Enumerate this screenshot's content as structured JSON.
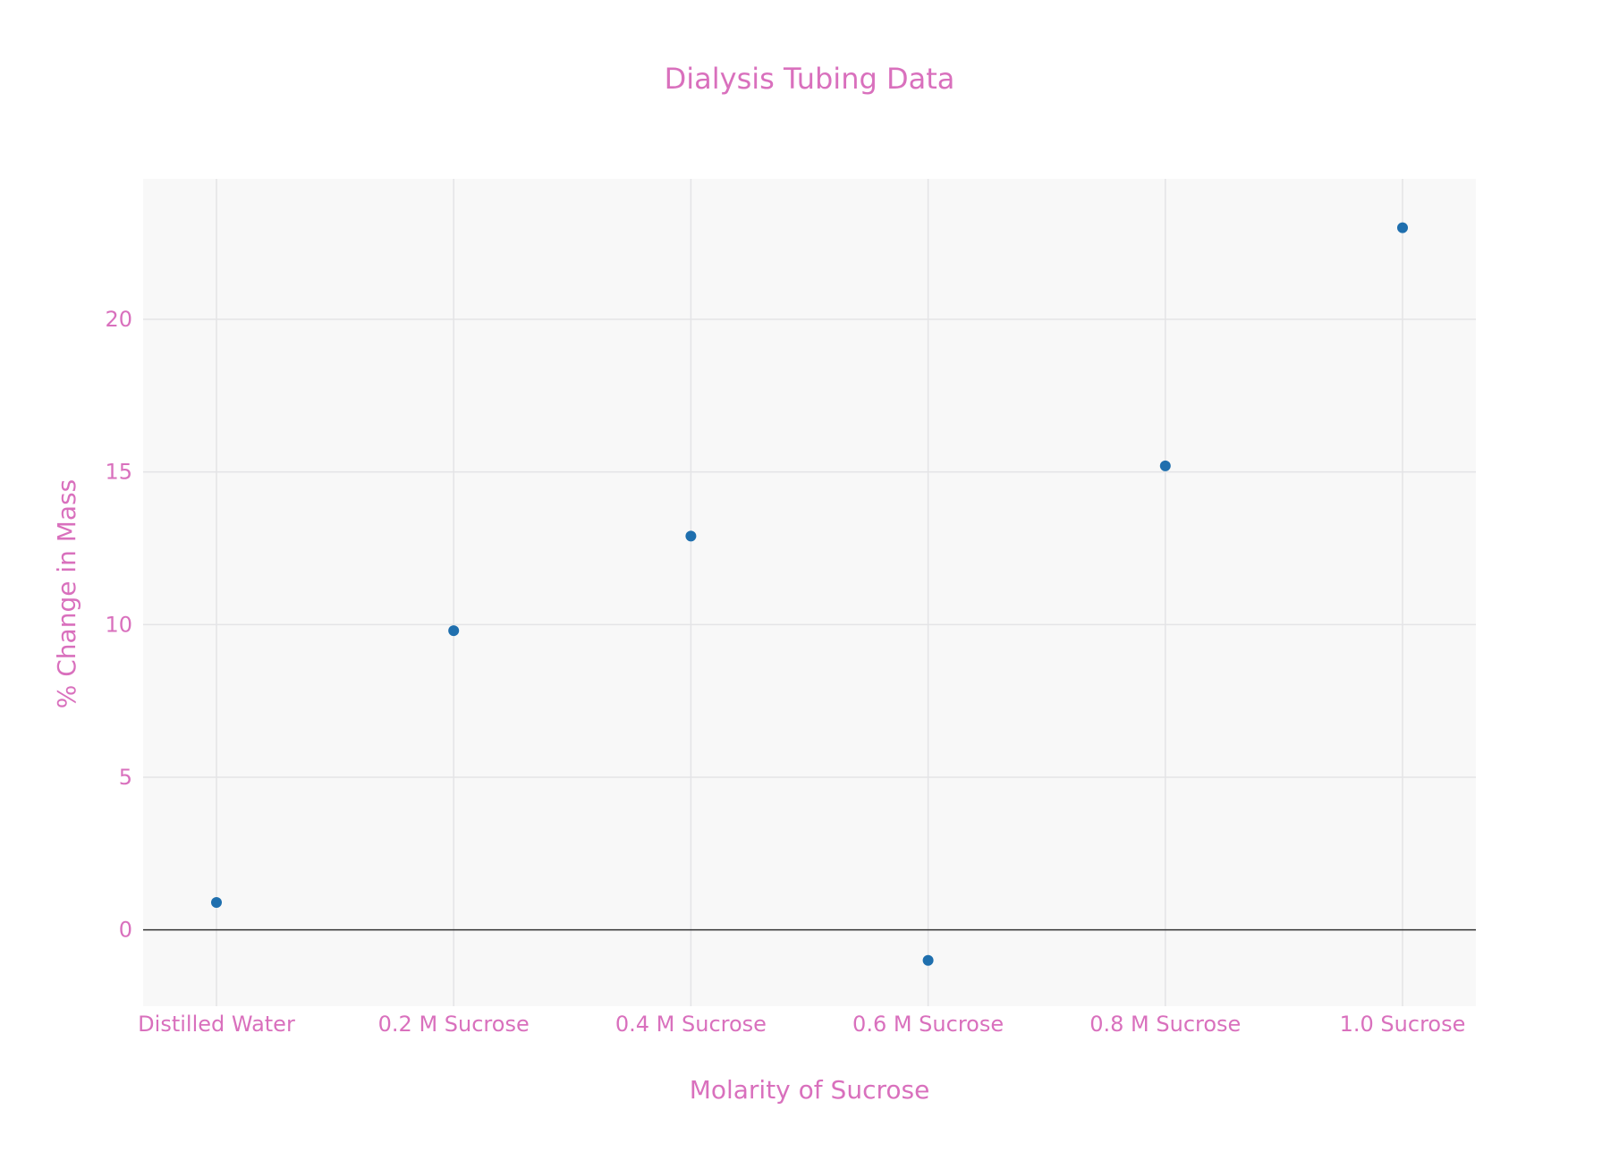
{
  "chart_data": {
    "type": "scatter",
    "title": "Dialysis Tubing Data",
    "xlabel": "Molarity of Sucrose",
    "ylabel": "% Change in Mass",
    "categories": [
      "Distilled Water",
      "0.2 M Sucrose",
      "0.4 M Sucrose",
      "0.6 M Sucrose",
      "0.8 M Sucrose",
      "1.0  Sucrose"
    ],
    "series": [
      {
        "values": [
          0.9,
          9.8,
          12.9,
          -1.0,
          15.2,
          23.0
        ]
      }
    ],
    "ylim": [
      -2.5,
      24.6
    ],
    "yticks": [
      0,
      5,
      10,
      15,
      20
    ],
    "ytick_labels": [
      "0",
      "5",
      "10",
      "15",
      "20"
    ],
    "grid": true,
    "zero_line": true,
    "colors": {
      "text": "#d970bd",
      "marker": "#1f6fae",
      "plot_bg": "#f8f8f8",
      "grid": "#e4e4e6",
      "zero_line": "#333333"
    }
  }
}
